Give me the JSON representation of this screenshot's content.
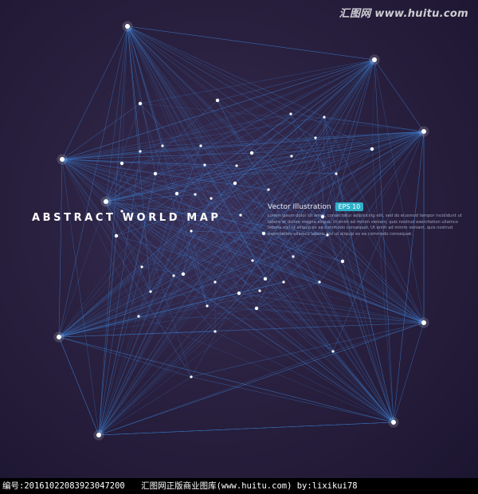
{
  "watermark": "汇图网 www.huitu.com",
  "title": "ABSTRACT WORLD MAP",
  "vector": {
    "label": "Vector Illustration",
    "badge": "EPS 10",
    "body": "Lorem ipsum dolor sit amet, consectetur adipisicing elit, sed do eiusmod tempor incididunt ut labore et dolore magna aliqua. Ut enim ad minim veniam, quis nostrud exercitation ullamco laboris nisi ut aliquip ex ea commodo consequat. Ut enim ad minim veniam, quis nostrud exercitation ullamco laboris nisi ut aliquip ex ea commodo consequat."
  },
  "footer": {
    "id_text": "编号:20161022083923047200",
    "site_text": "汇图网正版商业图库(www.huitu.com) by:lixikui78"
  },
  "colors": {
    "background": "#2a2140",
    "line": "#3d7fd0",
    "node": "#ffffff",
    "badge": "#2fb0c9"
  }
}
